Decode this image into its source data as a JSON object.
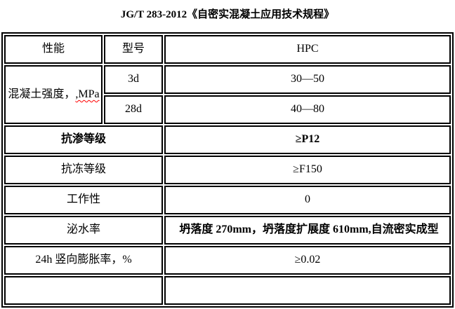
{
  "title": "JG/T 283-2012《自密实混凝土应用技术规程》",
  "table": {
    "header": {
      "performance": "性能",
      "model": "型号",
      "product": "HPC"
    },
    "strength": {
      "label": "混凝土强度，",
      "unit_misspelled": ",MPa",
      "rows": [
        {
          "age": "3d",
          "value": "30—50"
        },
        {
          "age": "28d",
          "value": "40—80"
        }
      ]
    },
    "rows": [
      {
        "label": "抗渗等级",
        "value": "≥P12"
      },
      {
        "label": "抗冻等级",
        "value": "≥F150"
      },
      {
        "label": "工作性",
        "value": "0"
      },
      {
        "label": "泌水率",
        "value": "坍落度 270mm，坍落度扩展度 610mm,自流密实成型"
      },
      {
        "label": "24h 竖向膨胀率，%",
        "value": "≥0.02"
      }
    ]
  },
  "colors": {
    "border": "#000000",
    "text": "#000000",
    "spellcheck_underline": "#ff0000",
    "background": "#ffffff"
  }
}
